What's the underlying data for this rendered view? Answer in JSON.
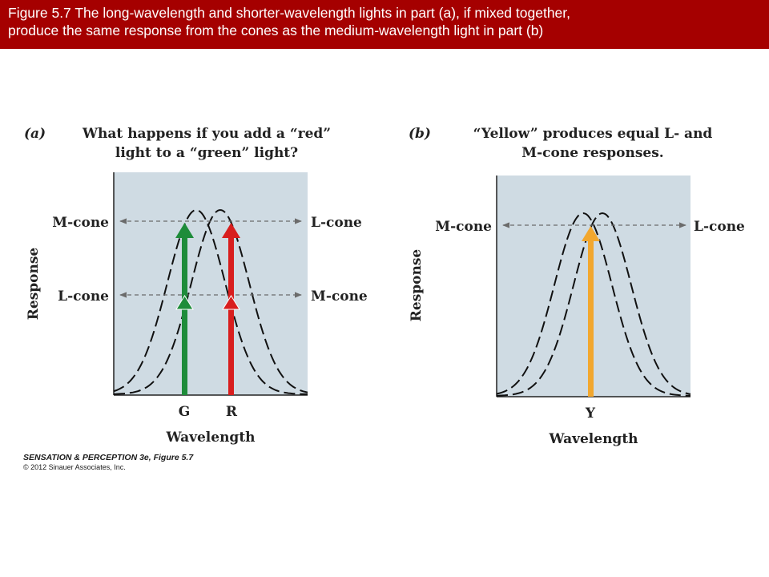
{
  "banner": {
    "line1": "Figure 5.7  The long-wavelength and shorter-wavelength lights in part (a), if mixed together,",
    "line2": "produce the same response from the cones as the medium-wavelength light in part (b)"
  },
  "panel_a": {
    "letter": "(a)",
    "title_line1": "What happens if you add a “red”",
    "title_line2": "light to a “green” light?",
    "y_axis_label": "Response",
    "x_axis_label": "Wavelength",
    "left_upper_label": "M-cone",
    "left_lower_label": "L-cone",
    "right_upper_label": "L-cone",
    "right_lower_label": "M-cone",
    "light_1": "G",
    "light_2": "R",
    "light_1_color": "#1e8c3a",
    "light_2_color": "#d81e1e"
  },
  "panel_b": {
    "letter": "(b)",
    "title_line1": "“Yellow” produces equal L- and",
    "title_line2": "M-cone responses.",
    "y_axis_label": "Response",
    "x_axis_label": "Wavelength",
    "left_label": "M-cone",
    "right_label": "L-cone",
    "light": "Y",
    "light_color": "#f2a72e"
  },
  "colors": {
    "banner": "#a50000",
    "plot_background": "#cfdbe3"
  },
  "credit": {
    "line1": "SENSATION & PERCEPTION 3e, Figure 5.7",
    "line2": "© 2012 Sinauer Associates, Inc."
  }
}
